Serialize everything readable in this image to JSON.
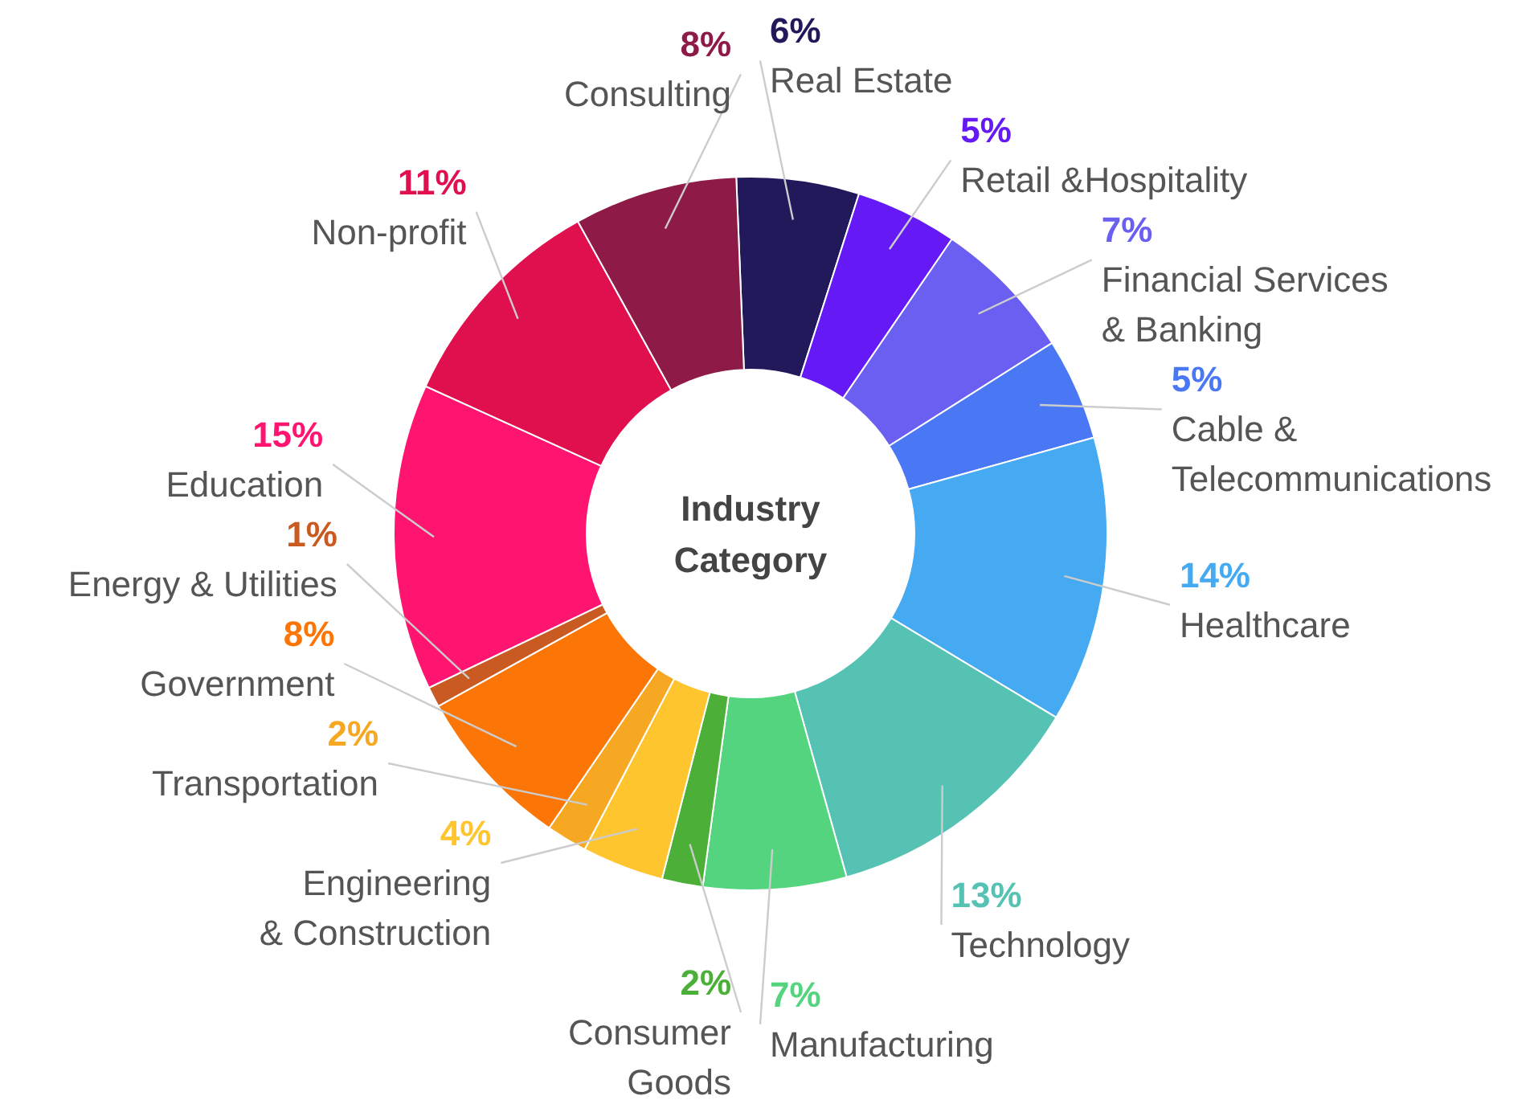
{
  "chart_data": {
    "type": "donut",
    "title": "Industry Category",
    "categories": [
      "Real Estate",
      "Retail &Hospitality",
      "Financial Services\n& Banking",
      "Cable &\nTelecommunications",
      "Healthcare",
      "Technology",
      "Manufacturing",
      "Consumer\nGoods",
      "Engineering\n& Construction",
      "Transportation",
      "Government",
      "Energy & Utilities",
      "Education",
      "Non-profit",
      "Consulting"
    ],
    "values": [
      6,
      5,
      7,
      5,
      14,
      13,
      7,
      2,
      4,
      2,
      8,
      1,
      15,
      11,
      8
    ],
    "value_labels": [
      "6%",
      "5%",
      "7%",
      "5%",
      "14%",
      "13%",
      "7%",
      "2%",
      "4%",
      "2%",
      "8%",
      "1%",
      "15%",
      "11%",
      "8%"
    ],
    "colors": [
      "#22195a",
      "#6419f5",
      "#6a5ff0",
      "#4a78f5",
      "#45aaf2",
      "#55c2b4",
      "#55d47f",
      "#4cb038",
      "#ffc52e",
      "#f7a823",
      "#fb7607",
      "#c95a22",
      "#ff1470",
      "#e0104f",
      "#8e1a48"
    ]
  }
}
